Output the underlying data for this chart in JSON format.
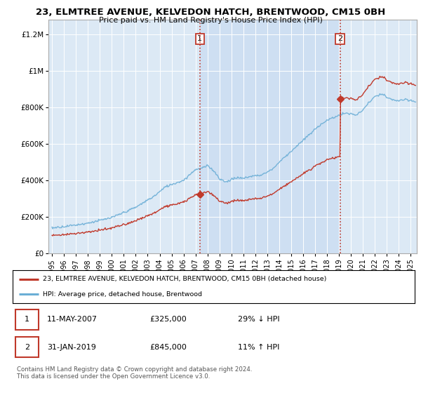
{
  "title": "23, ELMTREE AVENUE, KELVEDON HATCH, BRENTWOOD, CM15 0BH",
  "subtitle": "Price paid vs. HM Land Registry's House Price Index (HPI)",
  "ylabel_ticks": [
    "£0",
    "£200K",
    "£400K",
    "£600K",
    "£800K",
    "£1M",
    "£1.2M"
  ],
  "ylim": [
    0,
    1300000
  ],
  "xlim_start": 1994.7,
  "xlim_end": 2025.5,
  "background_color": "#ffffff",
  "plot_bg_color": "#dce9f5",
  "shade_color": "#c6d9f0",
  "purchase1_date": 2007.36,
  "purchase1_price": 325000,
  "purchase1_label": "1",
  "purchase2_date": 2019.08,
  "purchase2_price": 845000,
  "purchase2_label": "2",
  "legend_line1": "23, ELMTREE AVENUE, KELVEDON HATCH, BRENTWOOD, CM15 0BH (detached house)",
  "legend_line2": "HPI: Average price, detached house, Brentwood",
  "table_row1": [
    "1",
    "11-MAY-2007",
    "£325,000",
    "29% ↓ HPI"
  ],
  "table_row2": [
    "2",
    "31-JAN-2019",
    "£845,000",
    "11% ↑ HPI"
  ],
  "footer": "Contains HM Land Registry data © Crown copyright and database right 2024.\nThis data is licensed under the Open Government Licence v3.0.",
  "hpi_color": "#6baed6",
  "price_color": "#c0392b",
  "vline_color": "#c0392b",
  "purchase_dot_color": "#c0392b"
}
